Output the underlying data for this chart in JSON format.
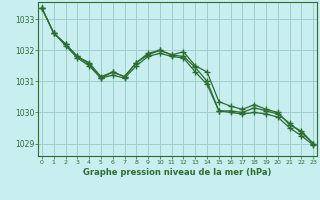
{
  "title": "Graphe pression niveau de la mer (hPa)",
  "background_color": "#c8eef0",
  "grid_color": "#9ecfca",
  "line_color": "#2d6e30",
  "xlim": [
    -0.3,
    23.3
  ],
  "ylim": [
    1028.6,
    1033.55
  ],
  "yticks": [
    1029,
    1030,
    1031,
    1032,
    1033
  ],
  "xticks": [
    0,
    1,
    2,
    3,
    4,
    5,
    6,
    7,
    8,
    9,
    10,
    11,
    12,
    13,
    14,
    15,
    16,
    17,
    18,
    19,
    20,
    21,
    22,
    23
  ],
  "line1_x": [
    0,
    1,
    2,
    3,
    4,
    5,
    6,
    7,
    8,
    9,
    10,
    11,
    12,
    13,
    14,
    15,
    16,
    17,
    18,
    19,
    20,
    21,
    22,
    23
  ],
  "line1_y": [
    1033.35,
    1032.55,
    1032.2,
    1031.8,
    1031.6,
    1031.15,
    1031.3,
    1031.15,
    1031.6,
    1031.9,
    1032.0,
    1031.85,
    1031.8,
    1031.45,
    1031.0,
    1030.05,
    1030.05,
    1030.0,
    1030.15,
    1030.05,
    1029.95,
    1029.65,
    1029.35,
    1029.0
  ],
  "line2_x": [
    0,
    1,
    2,
    3,
    4,
    5,
    6,
    7,
    8,
    9,
    10,
    11,
    12,
    13,
    14,
    15,
    16,
    17,
    18,
    19,
    20,
    21,
    22,
    23
  ],
  "line2_y": [
    1033.35,
    1032.55,
    1032.2,
    1031.8,
    1031.55,
    1031.1,
    1031.3,
    1031.15,
    1031.6,
    1031.85,
    1032.0,
    1031.85,
    1031.95,
    1031.5,
    1031.3,
    1030.35,
    1030.2,
    1030.1,
    1030.25,
    1030.1,
    1030.0,
    1029.6,
    1029.4,
    1029.0
  ],
  "line3_x": [
    0,
    1,
    2,
    3,
    4,
    5,
    6,
    7,
    8,
    9,
    10,
    11,
    12,
    13,
    14,
    15,
    16,
    17,
    18,
    19,
    20,
    21,
    22,
    23
  ],
  "line3_y": [
    1033.35,
    1032.55,
    1032.15,
    1031.75,
    1031.5,
    1031.1,
    1031.2,
    1031.1,
    1031.5,
    1031.8,
    1031.9,
    1031.8,
    1031.75,
    1031.3,
    1030.9,
    1030.05,
    1030.0,
    1029.95,
    1030.0,
    1029.95,
    1029.85,
    1029.5,
    1029.25,
    1028.95
  ]
}
